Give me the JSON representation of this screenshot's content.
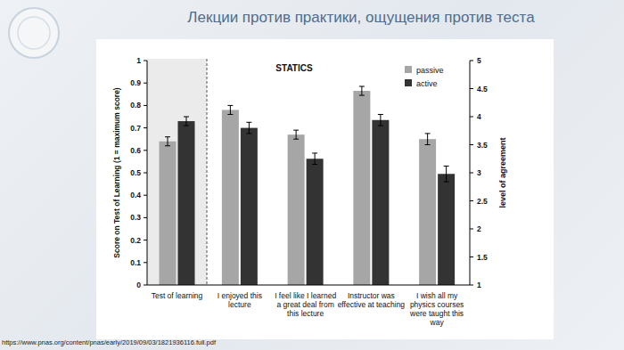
{
  "title": "Лекции против практики, ощущения против теста",
  "source": "https://www.pnas.org/content/pnas/early/2019/09/03/1821936116.full.pdf",
  "chart_data": [
    {
      "type": "bar",
      "categories": [
        "Test of learning"
      ],
      "y_label": "Score on Test of Learning (1 = maximum score)",
      "ylim": [
        0,
        1
      ],
      "yticks": [
        0,
        0.1,
        0.2,
        0.3,
        0.4,
        0.5,
        0.6,
        0.7,
        0.8,
        0.9,
        1
      ],
      "grid": false,
      "series": [
        {
          "color": "#a6a6a6",
          "values": [
            0.64
          ],
          "errors": [
            0.02
          ]
        },
        {
          "color": "#333333",
          "values": [
            0.73
          ],
          "errors": [
            0.02
          ]
        }
      ]
    },
    {
      "type": "bar",
      "title": "STATICS",
      "categories": [
        "I enjoyed this lecture",
        "I feel like I learned a great deal from this lecture",
        "Instructor was effective at teaching",
        "I wish all my physics courses were taught this way"
      ],
      "y2_label": "level of agreement",
      "y2lim": [
        1,
        5
      ],
      "y2ticks": [
        1,
        1.5,
        2,
        2.5,
        3,
        3.5,
        4,
        4.5,
        5
      ],
      "grid": false,
      "legend": "upper right",
      "series": [
        {
          "name": "passive",
          "color": "#a6a6a6",
          "axis": "y2",
          "values": [
            4.12,
            3.68,
            4.46,
            3.6
          ],
          "errors": [
            0.08,
            0.08,
            0.08,
            0.1
          ]
        },
        {
          "name": "active",
          "color": "#333333",
          "axis": "y2",
          "values": [
            3.8,
            3.25,
            3.94,
            2.98
          ],
          "errors": [
            0.1,
            0.1,
            0.1,
            0.14
          ]
        }
      ]
    }
  ]
}
